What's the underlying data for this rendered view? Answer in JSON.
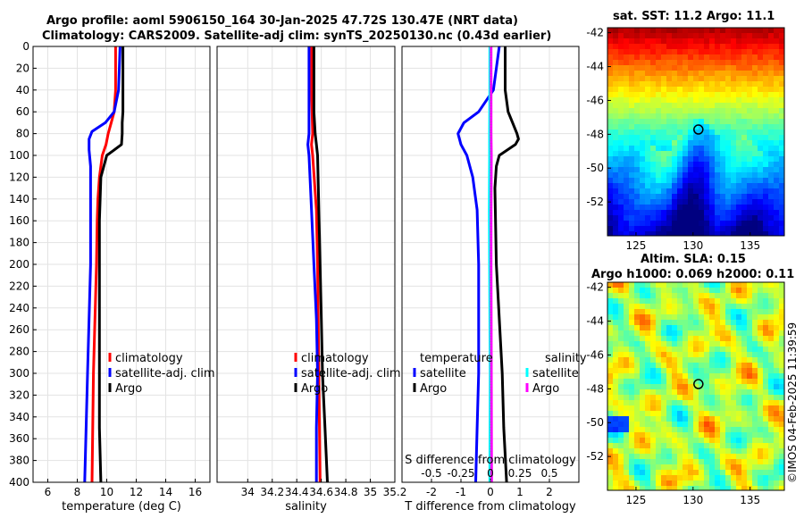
{
  "header": {
    "line1": "Argo profile: aoml 5906150_164 30-Jan-2025 47.72S 130.47E (NRT data)",
    "line2": "Climatology: CARS2009. Satellite-adj clim: synTS_20250130.nc (0.43d earlier)"
  },
  "sst_map": {
    "title": "sat. SST: 11.2 Argo: 11.1",
    "x_ticks": [
      125,
      130,
      135
    ],
    "y_ticks": [
      -42,
      -44,
      -46,
      -48,
      -50,
      -52
    ],
    "xlim": [
      122.5,
      138
    ],
    "ylim": [
      -54,
      -41.7
    ],
    "marker": {
      "lon": 130.47,
      "lat": -47.72
    }
  },
  "sla_map": {
    "title_line1": "Altim. SLA: 0.15",
    "title_line2": "Argo h1000: 0.069 h2000: 0.11",
    "x_ticks": [
      125,
      130,
      135
    ],
    "y_ticks": [
      -42,
      -44,
      -46,
      -48,
      -50,
      -52
    ],
    "xlim": [
      122.5,
      138
    ],
    "ylim": [
      -54,
      -41.7
    ],
    "marker": {
      "lon": 130.47,
      "lat": -47.72
    }
  },
  "credit": "©IMOS 04-Feb-2025 11:39:59",
  "colors": {
    "climatology": "#ff0000",
    "satellite": "#0000ff",
    "argo": "#000000",
    "satellite_salinity": "#00ffff",
    "argo_salinity": "#ff00ff"
  },
  "chart_data": [
    {
      "type": "line",
      "name": "temperature",
      "xlabel": "temperature (deg C)",
      "ylabel": "",
      "xlim": [
        5,
        17
      ],
      "ylim": [
        400,
        0
      ],
      "xticks": [
        6,
        8,
        10,
        12,
        14,
        16
      ],
      "yticks": [
        0,
        20,
        40,
        60,
        80,
        100,
        120,
        140,
        160,
        180,
        200,
        220,
        240,
        260,
        280,
        300,
        320,
        340,
        360,
        380,
        400
      ],
      "legend": [
        "climatology",
        "satellite-adj. clim",
        "Argo"
      ],
      "series": [
        {
          "name": "climatology",
          "depth": [
            0,
            20,
            40,
            60,
            70,
            80,
            90,
            100,
            110,
            120,
            140,
            160,
            200,
            250,
            300,
            350,
            400
          ],
          "values": [
            10.6,
            10.6,
            10.6,
            10.5,
            10.3,
            10.1,
            9.95,
            9.7,
            9.6,
            9.5,
            9.4,
            9.35,
            9.3,
            9.2,
            9.1,
            9.05,
            9.0
          ]
        },
        {
          "name": "satellite-adj. clim",
          "depth": [
            0,
            40,
            60,
            70,
            78,
            85,
            95,
            110,
            130,
            160,
            200,
            250,
            300,
            350,
            400
          ],
          "values": [
            10.9,
            10.8,
            10.5,
            9.9,
            9.0,
            8.8,
            8.8,
            8.9,
            8.9,
            8.9,
            8.9,
            8.8,
            8.7,
            8.6,
            8.5
          ]
        },
        {
          "name": "Argo",
          "depth": [
            0,
            20,
            40,
            60,
            70,
            80,
            90,
            95,
            100,
            110,
            120,
            140,
            160,
            200,
            250,
            300,
            350,
            400
          ],
          "values": [
            11.1,
            11.1,
            11.1,
            11.1,
            11.05,
            11.05,
            11.0,
            10.5,
            10.0,
            9.8,
            9.6,
            9.55,
            9.5,
            9.5,
            9.5,
            9.5,
            9.5,
            9.6
          ]
        }
      ]
    },
    {
      "type": "line",
      "name": "salinity",
      "xlabel": "salinity",
      "xlim": [
        33.75,
        35.2
      ],
      "ylim": [
        400,
        0
      ],
      "xticks": [
        34,
        34.2,
        34.4,
        34.6,
        34.8,
        35,
        35.2
      ],
      "legend": [
        "climatology",
        "satellite-adj. clim",
        "Argo"
      ],
      "series": [
        {
          "name": "climatology",
          "depth": [
            0,
            40,
            80,
            90,
            100,
            150,
            200,
            300,
            400
          ],
          "values": [
            34.52,
            34.52,
            34.53,
            34.52,
            34.53,
            34.56,
            34.57,
            34.58,
            34.59
          ]
        },
        {
          "name": "satellite-adj. clim",
          "depth": [
            0,
            40,
            80,
            90,
            100,
            150,
            200,
            250,
            300,
            350,
            400
          ],
          "values": [
            34.5,
            34.5,
            34.5,
            34.49,
            34.5,
            34.52,
            34.54,
            34.56,
            34.57,
            34.56,
            34.56
          ]
        },
        {
          "name": "Argo",
          "depth": [
            0,
            30,
            60,
            80,
            90,
            100,
            150,
            200,
            250,
            300,
            350,
            400
          ],
          "values": [
            34.54,
            34.54,
            34.54,
            34.55,
            34.56,
            34.57,
            34.58,
            34.59,
            34.6,
            34.61,
            34.63,
            34.65
          ]
        }
      ]
    },
    {
      "type": "line",
      "name": "difference from climatology",
      "xlabel": "T difference from climatology",
      "secondary_xlabel": "S difference from climatology",
      "xlim": [
        -3,
        3
      ],
      "ylim": [
        400,
        0
      ],
      "xticks": [
        -2,
        -1,
        0,
        1,
        2
      ],
      "secondary_xticks": [
        -0.5,
        -0.25,
        0,
        0.25,
        0.5
      ],
      "secondary_xlim": [
        -0.75,
        0.75
      ],
      "legend_groups": [
        {
          "title": "temperature",
          "items": [
            "satellite",
            "Argo"
          ]
        },
        {
          "title": "salinity",
          "items": [
            "satellite",
            "Argo"
          ]
        }
      ],
      "series": [
        {
          "name": "temperature satellite",
          "depth": [
            0,
            20,
            40,
            60,
            70,
            80,
            90,
            100,
            120,
            150,
            200,
            250,
            300,
            350,
            400
          ],
          "values": [
            0.3,
            0.2,
            0.1,
            -0.4,
            -0.9,
            -1.1,
            -1.0,
            -0.8,
            -0.6,
            -0.45,
            -0.4,
            -0.4,
            -0.4,
            -0.45,
            -0.5
          ]
        },
        {
          "name": "temperature Argo",
          "depth": [
            0,
            20,
            40,
            60,
            70,
            80,
            85,
            90,
            100,
            110,
            130,
            200,
            250,
            300,
            350,
            400
          ],
          "values": [
            0.5,
            0.5,
            0.5,
            0.6,
            0.75,
            0.9,
            0.95,
            0.85,
            0.3,
            0.2,
            0.15,
            0.2,
            0.3,
            0.4,
            0.45,
            0.55
          ]
        },
        {
          "name": "salinity satellite",
          "depth": [
            0,
            40,
            80,
            100,
            150,
            200,
            300,
            400
          ],
          "values": [
            -0.02,
            -0.02,
            -0.03,
            -0.03,
            -0.04,
            -0.03,
            -0.01,
            -0.02
          ]
        },
        {
          "name": "salinity Argo",
          "depth": [
            0,
            40,
            80,
            100,
            150,
            200,
            300,
            400
          ],
          "values": [
            0.02,
            0.02,
            0.02,
            0.03,
            0.02,
            0.02,
            0.03,
            0.04
          ]
        }
      ]
    }
  ]
}
